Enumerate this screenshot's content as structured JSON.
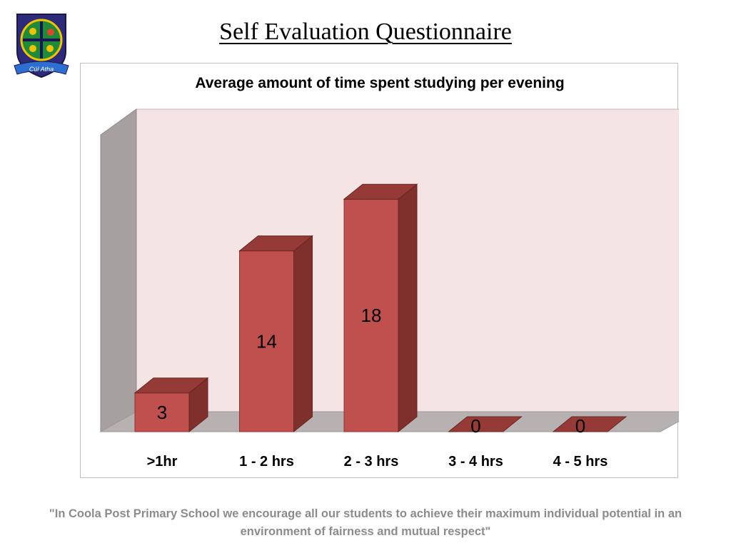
{
  "slide": {
    "title": "Self Evaluation Questionnaire",
    "footer": "\"In Coola Post Primary School we encourage all our students to achieve their maximum individual potential in an environment of fairness and mutual respect\""
  },
  "logo": {
    "motto": "Cúl Atha"
  },
  "colors": {
    "bar_front": "#c0504d",
    "bar_side": "#7f2f2c",
    "bar_top": "#963a37",
    "back_wall": "#f4e4e3",
    "side_wall": "#a6a0a0",
    "floor": "#b7b1b1"
  },
  "chart_data": {
    "type": "bar",
    "title": "Average amount of time spent studying per evening",
    "categories": [
      ">1hr",
      "1 - 2 hrs",
      "2 - 3 hrs",
      "3 - 4 hrs",
      "4 - 5 hrs"
    ],
    "values": [
      3,
      14,
      18,
      0,
      0
    ],
    "ylim": [
      0,
      20
    ],
    "grid": false,
    "legend": "none",
    "style": "3d-column",
    "data_labels": true
  }
}
